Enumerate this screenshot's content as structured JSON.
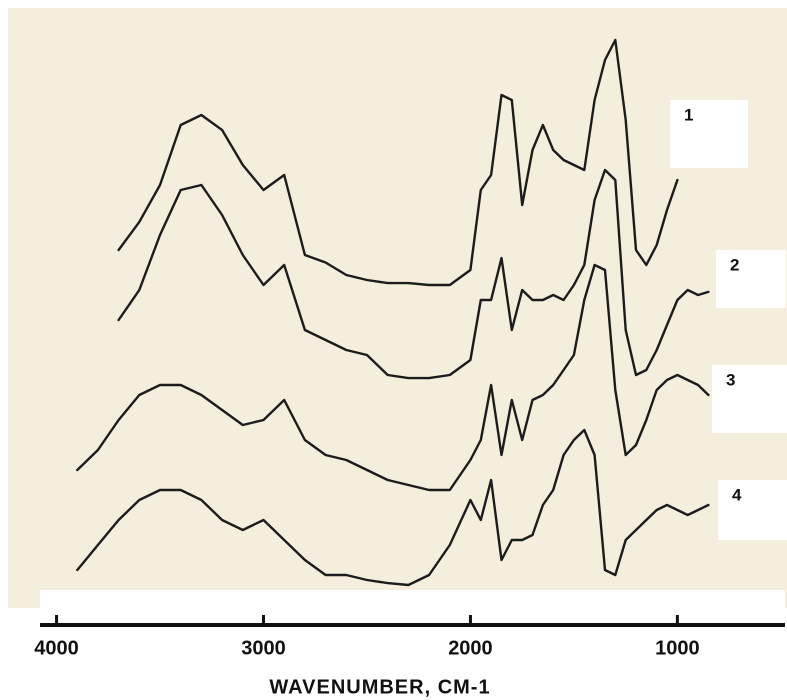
{
  "chart_data": {
    "type": "line",
    "xlabel": "WAVENUMBER, CM-1",
    "x": [
      3900,
      3800,
      3700,
      3600,
      3500,
      3400,
      3300,
      3200,
      3100,
      3000,
      2900,
      2800,
      2700,
      2600,
      2500,
      2400,
      2300,
      2200,
      2100,
      2000,
      1950,
      1900,
      1850,
      1800,
      1750,
      1700,
      1650,
      1600,
      1550,
      1500,
      1450,
      1400,
      1350,
      1300,
      1250,
      1200,
      1150,
      1100,
      1050,
      1000,
      950,
      900,
      850
    ],
    "xlim": [
      4080,
      480
    ],
    "xticks": [
      4000,
      3000,
      2000,
      1000
    ],
    "ylim": [
      0,
      100
    ],
    "series": [
      {
        "name": "1",
        "color": "#1c1c1c",
        "values": [
          null,
          null,
          60,
          64.5,
          70.4,
          80,
          81.6,
          79.2,
          73.6,
          69.6,
          72,
          59.2,
          58,
          56,
          55.2,
          54.7,
          54.7,
          54.4,
          54.4,
          56.8,
          69.6,
          72,
          84.8,
          84,
          67.2,
          76,
          80,
          76,
          74.4,
          73.6,
          72.8,
          84,
          90.4,
          93.6,
          80.8,
          60,
          57.6,
          60.8,
          66.4,
          71.2,
          null,
          null,
          null
        ]
      },
      {
        "name": "2",
        "color": "#1c1c1c",
        "values": [
          null,
          null,
          48.8,
          53.6,
          62.4,
          69.6,
          70.4,
          65.6,
          59.2,
          54.4,
          57.6,
          47.2,
          45.6,
          44,
          43.2,
          40,
          39.5,
          39.5,
          40,
          42.4,
          52,
          52,
          58.7,
          47.2,
          53.6,
          52,
          52,
          52.8,
          52,
          54.4,
          57.6,
          68,
          72.8,
          71.2,
          47.2,
          40,
          40.8,
          44,
          48,
          52,
          53.6,
          52.8,
          53.3
        ]
      },
      {
        "name": "3",
        "color": "#1c1c1c",
        "values": [
          24.8,
          28,
          32.8,
          36.8,
          38.4,
          38.4,
          36.8,
          34.4,
          32,
          32.8,
          36,
          29.6,
          27.2,
          26.4,
          24.8,
          23.2,
          22.4,
          21.6,
          21.6,
          26.4,
          29.6,
          38.4,
          27.2,
          36,
          29.6,
          36,
          36.8,
          38.4,
          40.8,
          43.2,
          52,
          57.6,
          56.8,
          37.6,
          27.2,
          28.8,
          32.8,
          37.6,
          39.2,
          40,
          39.2,
          38.4,
          36.8
        ]
      },
      {
        "name": "4",
        "color": "#1c1c1c",
        "values": [
          8.8,
          12.8,
          16.8,
          20,
          21.6,
          21.6,
          20,
          16.8,
          15.2,
          16.8,
          13.6,
          10.4,
          8,
          8,
          7.2,
          6.7,
          6.4,
          8,
          12.8,
          20,
          16.8,
          23.2,
          10.4,
          13.6,
          13.6,
          14.4,
          19.2,
          21.6,
          27.2,
          29.6,
          31.2,
          27.2,
          8.8,
          8,
          13.6,
          15.2,
          16.8,
          18.4,
          19.2,
          18.4,
          17.6,
          18.4,
          19.2
        ]
      }
    ]
  }
}
